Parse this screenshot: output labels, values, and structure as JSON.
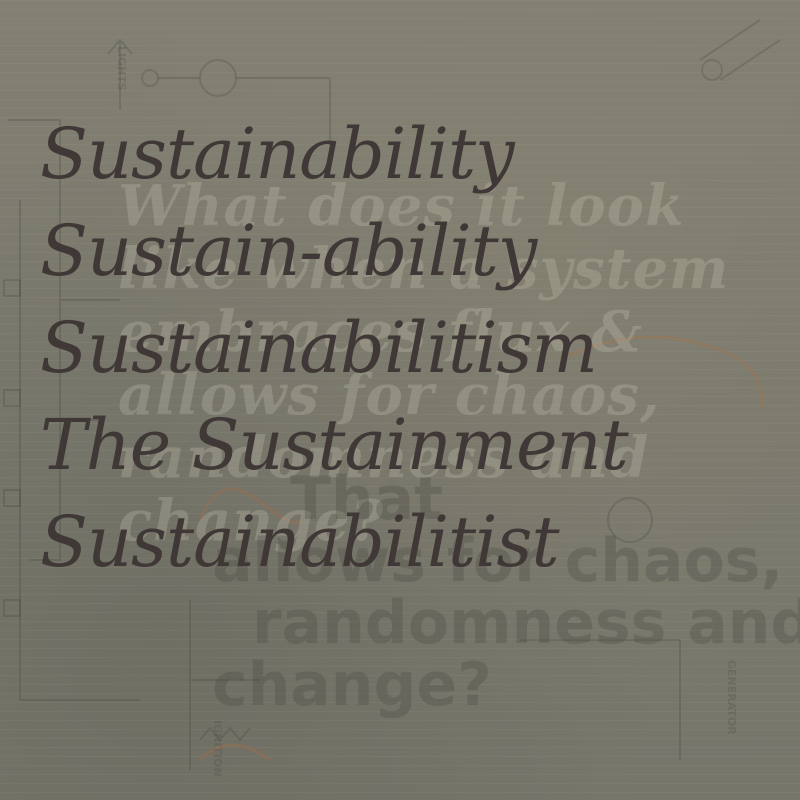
{
  "main_words": [
    "Sustainability",
    "Sustain-ability",
    "Sustainabilitism",
    "The Sustainment",
    "Sustainabilitist"
  ],
  "background_text_light": [
    "What does it look",
    "like when a system",
    "embraces flux &",
    "allows for chaos,",
    "randomness and",
    "change?"
  ],
  "background_text_dark": [
    "That",
    "allows for chaos,",
    "randomness and",
    "change?"
  ],
  "schematic_labels": {
    "lights": "LIGHTS",
    "ignition": "IGNITION",
    "generator": "GENERATOR"
  },
  "colors": {
    "background": "#7d7b6f",
    "main_text": "#3f3836",
    "ghost_light": "#c8c4b4",
    "ghost_dark": "#46443c",
    "accent_orange": "#b26b3c"
  }
}
